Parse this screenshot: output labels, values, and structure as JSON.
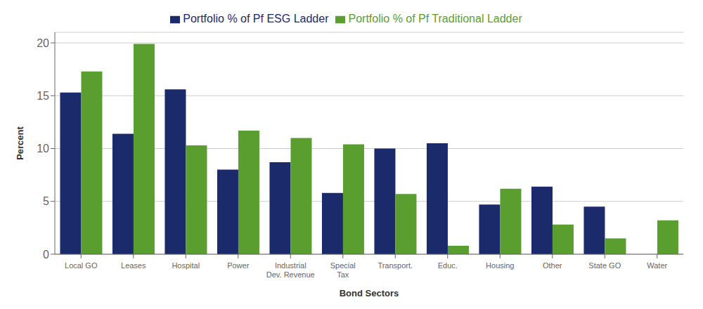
{
  "chart_data": {
    "type": "bar",
    "categories": [
      "Local GO",
      "Leases",
      "Hospital",
      "Power",
      "Industrial\nDev. Revenue",
      "Special\nTax",
      "Transport.",
      "Educ.",
      "Housing",
      "Other",
      "State GO",
      "Water"
    ],
    "series": [
      {
        "name": "Portfolio % of Pf ESG Ladder",
        "color": "#1b2a6b",
        "values": [
          15.3,
          11.4,
          15.6,
          8.0,
          8.7,
          5.8,
          10.0,
          10.5,
          4.7,
          6.4,
          4.5,
          0.0
        ]
      },
      {
        "name": "Portfolio % of Pf Traditional Ladder",
        "color": "#5a9e2f",
        "values": [
          17.3,
          19.9,
          10.3,
          11.7,
          11.0,
          10.4,
          5.7,
          0.8,
          6.2,
          2.8,
          1.5,
          3.2
        ]
      }
    ],
    "xlabel": "Bond Sectors",
    "ylabel": "Percent",
    "ylim": [
      0,
      21
    ],
    "yticks": [
      0,
      5,
      10,
      15,
      20
    ],
    "grid": true,
    "legend": "top"
  }
}
